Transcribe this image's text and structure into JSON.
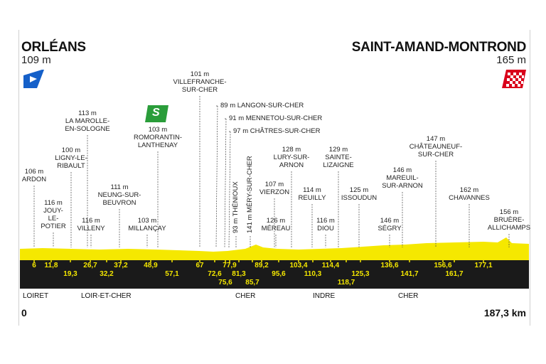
{
  "start": {
    "city": "ORLÉANS",
    "altitude": "109 m"
  },
  "finish": {
    "city": "SAINT-AMAND-MONTROND",
    "altitude": "165 m"
  },
  "distance": {
    "start": "0",
    "end": "187,3 km"
  },
  "sprint_icon": "S",
  "colors": {
    "profile": "#f5e800",
    "band": "#1a1a1a",
    "start_flag": "#1560c9",
    "finish_flag": "#d9001b",
    "sprint": "#2a9d3a"
  },
  "places": [
    {
      "text": "106 m\nARDON"
    },
    {
      "text": "116 m\nJOUY-\nLE-\nPOTIER"
    },
    {
      "text": "100 m\nLIGNY-LE-\nRIBAULT"
    },
    {
      "text": "113 m\nLA MAROLLE-\nEN-SOLOGNE"
    },
    {
      "text": "116 m\nVILLENY"
    },
    {
      "text": "111 m\nNEUNG-SUR-\nBEUVRON"
    },
    {
      "text": "103 m\nROMORANTIN-\nLANTHENAY"
    },
    {
      "text": "103 m\nMILLANÇAY"
    },
    {
      "text": "101 m\nVILLEFRANCHE-\nSUR-CHER"
    },
    {
      "text": "89 m LANGON-SUR-CHER"
    },
    {
      "text": "91 m MENNETOU-SUR-CHER"
    },
    {
      "text": "97 m CHÂTRES-SUR-CHER"
    },
    {
      "text": "107 m\nVIERZON"
    },
    {
      "text": "128 m\nLURY-SUR-\nARNON"
    },
    {
      "text": "126 m\nMÉREAU"
    },
    {
      "text": "114 m\nREUILLY"
    },
    {
      "text": "129 m\nSAINTE-\nLIZAIGNE"
    },
    {
      "text": "116 m\nDIOU"
    },
    {
      "text": "125 m\nISSOUDUN"
    },
    {
      "text": "146 m\nMAREUIL-\nSUR-ARNON"
    },
    {
      "text": "146 m\nSÉGRY"
    },
    {
      "text": "147 m\nCHÂTEAUNEUF-\nSUR-CHER"
    },
    {
      "text": "162 m\nCHAVANNES"
    },
    {
      "text": "156 m\nBRUÈRE-\nALLICHAMPS"
    }
  ],
  "vertical_places": [
    {
      "text": "93 m THÉNIOUX"
    },
    {
      "text": "141 m MÉRY-SUR-CHER"
    }
  ],
  "km_marks": [
    "6",
    "11,8",
    "19,3",
    "26,7",
    "32,2",
    "37,2",
    "48,9",
    "57,1",
    "67",
    "72,6",
    "75,6",
    "77,9",
    "81,3",
    "85,7",
    "89,2",
    "95,6",
    "103,4",
    "110,3",
    "114,4",
    "118,7",
    "125,3",
    "136,6",
    "141,7",
    "156,6",
    "161,7",
    "177,1"
  ],
  "regions": [
    "LOIRET",
    "LOIR-ET-CHER",
    "CHER",
    "INDRE",
    "CHER"
  ]
}
